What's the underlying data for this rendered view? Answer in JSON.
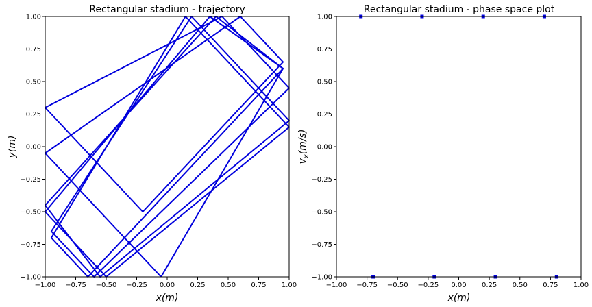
{
  "chart_data": [
    {
      "type": "line",
      "title": "Rectangular stadium - trajectory",
      "xlabel": "x(m)",
      "ylabel": "y(m)",
      "xlim": [
        -1.0,
        1.0
      ],
      "ylim": [
        -1.0,
        1.0
      ],
      "xticks": [
        "−1.00",
        "−0.75",
        "−0.50",
        "−0.25",
        "0.00",
        "0.25",
        "0.50",
        "0.75",
        "1.00"
      ],
      "yticks": [
        "−1.00",
        "−0.75",
        "−0.50",
        "−0.25",
        "0.00",
        "0.25",
        "0.50",
        "0.75",
        "1.00"
      ],
      "grid": false,
      "series": [
        {
          "color": "#0000dd",
          "x": [
            -0.05,
            -0.45,
            -1.0,
            0.6,
            0.95,
            -0.2,
            -1.0,
            0.45,
            1.0,
            -0.6,
            -0.95,
            0.2,
            1.0,
            -0.55,
            -1.0,
            0.4,
            0.95,
            -0.65,
            -0.95,
            0.15,
            1.0,
            -0.5,
            -1.0,
            0.35,
            0.95,
            -0.05
          ],
          "y": [
            -1.0,
            -0.6,
            -0.05,
            1.0,
            0.65,
            -0.5,
            0.3,
            1.0,
            0.45,
            -1.0,
            -0.65,
            1.0,
            0.2,
            -1.0,
            -0.45,
            1.0,
            0.6,
            -1.0,
            -0.7,
            1.0,
            0.15,
            -1.0,
            -0.5,
            1.0,
            0.6,
            -1.0
          ]
        }
      ]
    },
    {
      "type": "scatter",
      "title": "Rectangular stadium - phase space plot",
      "xlabel": "x(m)",
      "ylabel": "v_x(m/s)",
      "xlim": [
        -1.0,
        1.0
      ],
      "ylim": [
        -1.0,
        1.0
      ],
      "xticks": [
        "−1.00",
        "−0.75",
        "−0.50",
        "−0.25",
        "0.00",
        "0.25",
        "0.50",
        "0.75",
        "1.00"
      ],
      "yticks": [
        "−1.00",
        "−0.75",
        "−0.50",
        "−0.25",
        "0.00",
        "0.25",
        "0.50",
        "0.75",
        "1.00"
      ],
      "grid": false,
      "series": [
        {
          "color": "#0000dd",
          "x": [
            -0.8,
            -0.3,
            0.2,
            0.7,
            -0.7,
            -0.2,
            0.3,
            0.8
          ],
          "y": [
            1.0,
            1.0,
            1.0,
            1.0,
            -1.0,
            -1.0,
            -1.0,
            -1.0
          ]
        }
      ]
    }
  ]
}
